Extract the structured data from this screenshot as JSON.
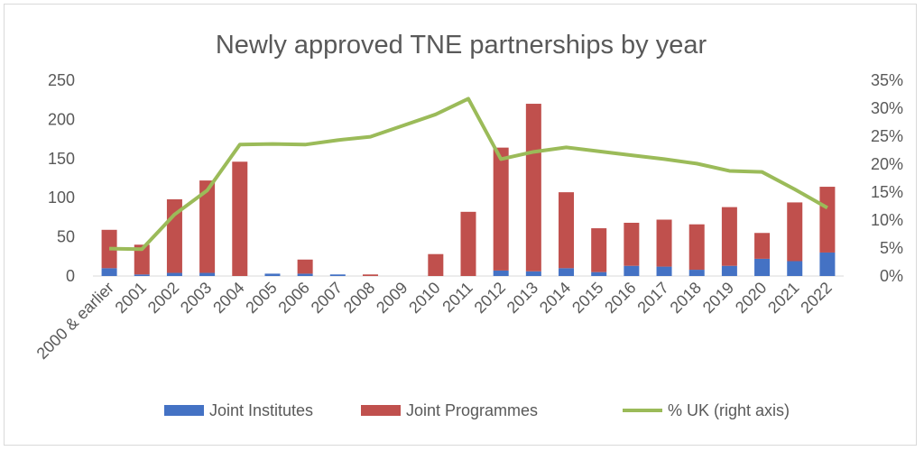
{
  "chart_data": {
    "type": "bar",
    "stacked": true,
    "title": "Newly approved TNE partnerships by year",
    "categories": [
      "2000 & earlier",
      "2001",
      "2002",
      "2003",
      "2004",
      "2005",
      "2006",
      "2007",
      "2008",
      "2009",
      "2010",
      "2011",
      "2012",
      "2013",
      "2014",
      "2015",
      "2016",
      "2017",
      "2018",
      "2019",
      "2020",
      "2021",
      "2022"
    ],
    "series": [
      {
        "name": "Joint Institutes",
        "kind": "bar",
        "axis": "left",
        "color": "#4472c4",
        "values": [
          10,
          2,
          4,
          4,
          0,
          3,
          3,
          2,
          0,
          0,
          0,
          0,
          7,
          6,
          10,
          5,
          13,
          12,
          8,
          13,
          22,
          19,
          30
        ]
      },
      {
        "name": "Joint Programmes",
        "kind": "bar",
        "axis": "left",
        "color": "#c0504d",
        "values": [
          49,
          38,
          94,
          118,
          146,
          0,
          18,
          0,
          2,
          0,
          28,
          82,
          157,
          214,
          97,
          56,
          55,
          60,
          58,
          75,
          33,
          75,
          84
        ]
      },
      {
        "name": "% UK (right axis)",
        "kind": "line",
        "axis": "right",
        "color": "#9bbb59",
        "values": [
          4.9,
          4.8,
          11.0,
          15.3,
          23.5,
          23.6,
          23.5,
          24.3,
          24.9,
          26.9,
          28.9,
          31.7,
          20.9,
          22.2,
          23.0,
          22.3,
          21.6,
          20.9,
          20.1,
          18.8,
          18.6,
          15.5,
          12.2
        ]
      }
    ],
    "y_left": {
      "min": 0,
      "max": 250,
      "ticks": [
        "0",
        "50",
        "100",
        "150",
        "200",
        "250"
      ]
    },
    "y_right": {
      "min": 0,
      "max": 35,
      "ticks": [
        "0%",
        "5%",
        "10%",
        "15%",
        "20%",
        "25%",
        "30%",
        "35%"
      ]
    },
    "grid": false,
    "legend_position": "bottom"
  }
}
